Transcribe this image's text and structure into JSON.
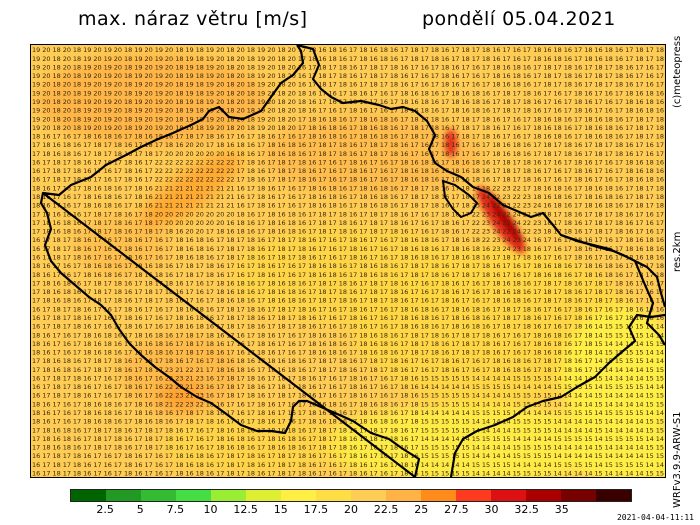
{
  "header": {
    "title": "max. náraz větru [m/s]",
    "date": "pondělí 05.04.2021"
  },
  "side_labels": {
    "credit": "(c)meteopress",
    "resolution": "res.2km",
    "model": "WRFv3.9.9-ARW-S1"
  },
  "timestamp": "2021-04-04-11:11",
  "legend": {
    "colors": [
      "#006400",
      "#229922",
      "#33bb33",
      "#44dd44",
      "#99ee33",
      "#ddee33",
      "#ffee44",
      "#ffdd44",
      "#ffcc55",
      "#ffb347",
      "#ff8c1a",
      "#ff3b1f",
      "#dd1111",
      "#aa0000",
      "#770000",
      "#3a0000"
    ],
    "ticks": [
      "2.5",
      "5",
      "7.5",
      "10",
      "12.5",
      "15",
      "17.5",
      "20",
      "22.5",
      "25",
      "27.5",
      "30",
      "32.5",
      "35"
    ]
  }
}
